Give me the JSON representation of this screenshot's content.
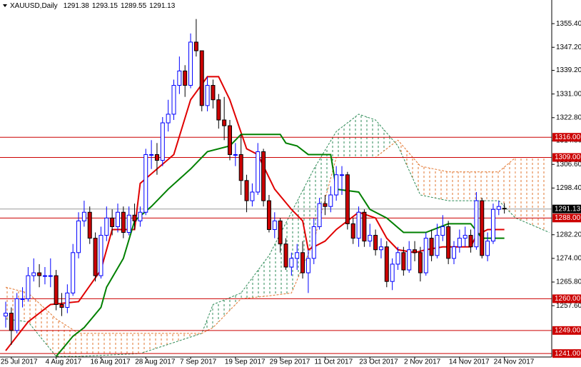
{
  "chart_data": {
    "type": "candlestick",
    "title": "XAUUSD,Daily",
    "categories": [
      null,
      "25 Jul 2017",
      null,
      null,
      null,
      null,
      null,
      null,
      null,
      "4 Aug 2017",
      null,
      null,
      null,
      null,
      null,
      null,
      null,
      "16 Aug 2017",
      null,
      null,
      null,
      null,
      null,
      null,
      null,
      "28 Aug 2017",
      null,
      null,
      null,
      null,
      null,
      null,
      null,
      "7 Sep 2017",
      null,
      null,
      null,
      null,
      null,
      null,
      null,
      "19 Sep 2017",
      null,
      null,
      null,
      null,
      null,
      null,
      null,
      "29 Sep 2017",
      null,
      null,
      null,
      null,
      null,
      null,
      null,
      "11 Oct 2017",
      null,
      null,
      null,
      null,
      null,
      null,
      null,
      "23 Oct 2017",
      null,
      null,
      null,
      null,
      null,
      null,
      null,
      "2 Nov 2017",
      null,
      null,
      null,
      null,
      null,
      null,
      null,
      "14 Nov 2017",
      null,
      null,
      null,
      null,
      null,
      null,
      null,
      "24 Nov 2017"
    ],
    "open": [
      1254,
      1255,
      1249,
      1260,
      1260,
      1268,
      1269,
      1268,
      1268,
      1268,
      1258,
      1257,
      1262,
      1276,
      1287,
      1290,
      1281,
      1268,
      1282,
      1288,
      1285,
      1290,
      1283,
      1289,
      1287,
      1290,
      1310,
      1310,
      1308,
      1321,
      1324,
      1334,
      1339,
      1334,
      1349,
      1346,
      1327,
      1334,
      1329,
      1322,
      1320,
      1310,
      1310,
      1301,
      1294,
      1297,
      1311,
      1294,
      1284,
      1287,
      1279,
      1271,
      1274,
      1276,
      1269,
      1274,
      1285,
      1293,
      1292,
      1296,
      1303,
      1303,
      1286,
      1281,
      1290,
      1280,
      1282,
      1277,
      1278,
      1266,
      1272,
      1276,
      1270,
      1277,
      1276,
      1269,
      1281,
      1275,
      1282,
      1285,
      1274,
      1278,
      1281,
      1282,
      1278,
      1294,
      1275,
      1280,
      1291,
      1291.38
    ],
    "high": [
      1259,
      1257,
      1262,
      1264,
      1271,
      1274,
      1272,
      1271,
      1274,
      1270,
      1262,
      1265,
      1279,
      1290,
      1294,
      1292,
      1283,
      1285,
      1292,
      1291,
      1293,
      1292,
      1292,
      1293,
      1292,
      1312,
      1315,
      1314,
      1323,
      1329,
      1336,
      1344,
      1341,
      1352,
      1357,
      1346,
      1337,
      1336,
      1331,
      1330,
      1322,
      1314,
      1317,
      1303,
      1300,
      1314,
      1312,
      1296,
      1290,
      1288,
      1281,
      1276,
      1279,
      1280,
      1277,
      1288,
      1295,
      1296,
      1299,
      1306,
      1306,
      1304,
      1288,
      1292,
      1291,
      1286,
      1284,
      1281,
      1280,
      1274,
      1278,
      1278,
      1280,
      1280,
      1278,
      1283,
      1284,
      1286,
      1289,
      1287,
      1280,
      1284,
      1285,
      1284,
      1297,
      1295,
      1283,
      1293,
      1294,
      1293.15
    ],
    "low": [
      1250,
      1244,
      1248,
      1257,
      1259,
      1266,
      1264,
      1265,
      1264,
      1256,
      1254,
      1255,
      1261,
      1274,
      1285,
      1279,
      1266,
      1267,
      1280,
      1282,
      1283,
      1281,
      1282,
      1284,
      1285,
      1289,
      1305,
      1303,
      1306,
      1318,
      1322,
      1331,
      1330,
      1333,
      1344,
      1325,
      1325,
      1326,
      1319,
      1315,
      1308,
      1306,
      1296,
      1290,
      1292,
      1296,
      1292,
      1283,
      1281,
      1276,
      1270,
      1268,
      1270,
      1267,
      1262,
      1272,
      1284,
      1289,
      1290,
      1294,
      1296,
      1284,
      1279,
      1278,
      1278,
      1278,
      1275,
      1274,
      1264,
      1263,
      1270,
      1268,
      1269,
      1273,
      1266,
      1268,
      1273,
      1274,
      1280,
      1272,
      1272,
      1276,
      1278,
      1276,
      1277,
      1274,
      1273,
      1279,
      1289,
      1289.55
    ],
    "close": [
      1255,
      1249,
      1260,
      1260,
      1268,
      1269,
      1268,
      1268,
      1268,
      1258,
      1257,
      1262,
      1276,
      1287,
      1290,
      1281,
      1268,
      1282,
      1288,
      1285,
      1290,
      1283,
      1289,
      1287,
      1290,
      1310,
      1310,
      1308,
      1321,
      1324,
      1334,
      1339,
      1334,
      1349,
      1346,
      1327,
      1334,
      1329,
      1322,
      1320,
      1310,
      1310,
      1301,
      1294,
      1297,
      1311,
      1294,
      1284,
      1287,
      1279,
      1271,
      1274,
      1276,
      1269,
      1274,
      1285,
      1293,
      1292,
      1296,
      1303,
      1303,
      1286,
      1281,
      1290,
      1280,
      1282,
      1277,
      1278,
      1266,
      1272,
      1276,
      1270,
      1277,
      1276,
      1269,
      1281,
      1275,
      1282,
      1285,
      1274,
      1278,
      1281,
      1282,
      1278,
      1294,
      1275,
      1280,
      1291,
      1292,
      1291.13
    ],
    "up_color": "#0000ff",
    "down_color": "#cc0000",
    "lines": [
      {
        "color": "#e00000",
        "x": [
          0,
          4,
          8,
          13,
          17,
          19,
          23,
          24,
          30,
          33,
          36,
          38,
          40,
          43,
          45,
          48,
          51,
          53,
          54,
          57,
          59,
          63,
          66,
          68,
          70,
          73,
          75,
          78,
          83,
          84,
          86,
          89
        ],
        "values": [
          1242,
          1252,
          1258,
          1259,
          1270,
          1284,
          1284,
          1300,
          1310,
          1329,
          1337,
          1337,
          1329,
          1312,
          1310,
          1298,
          1291,
          1287,
          1277,
          1280,
          1284,
          1290,
          1288,
          1281,
          1277,
          1276,
          1277,
          1278,
          1278,
          1282,
          1284,
          1284
        ]
      },
      {
        "color": "#008000",
        "x": [
          9,
          12,
          14,
          17,
          18,
          21,
          23,
          26,
          29,
          33,
          36,
          40,
          42,
          49,
          50,
          52,
          54,
          58,
          59,
          63,
          65,
          68,
          71,
          75,
          79,
          83,
          85,
          89
        ],
        "values": [
          1240,
          1247,
          1250,
          1257,
          1264,
          1274,
          1287,
          1292,
          1298,
          1305,
          1311,
          1313,
          1317,
          1317,
          1314,
          1313,
          1310,
          1310,
          1298,
          1297,
          1291,
          1288,
          1283,
          1283,
          1286,
          1286,
          1281,
          1281
        ]
      }
    ],
    "cloud": {
      "up_color": "#2e8b57",
      "down_color": "#e2762f",
      "x": [
        0,
        4,
        9,
        13,
        24,
        35,
        37,
        42,
        47,
        51,
        55,
        59,
        63,
        66,
        70,
        74,
        79,
        88,
        91,
        97
      ],
      "span_a": [
        1253,
        1252,
        1240,
        1240,
        1241,
        1248,
        1258,
        1262,
        1275,
        1290,
        1305,
        1318,
        1324,
        1322,
        1313,
        1296,
        1294,
        1294,
        1288,
        1283
      ],
      "span_b": [
        1264,
        1262,
        1253,
        1248,
        1248,
        1248,
        1250,
        1260,
        1261,
        1262,
        1280,
        1309,
        1309,
        1309,
        1315,
        1306,
        1304,
        1304,
        1309,
        1309
      ]
    },
    "levels": [
      {
        "value": 1316,
        "label": "1316.00"
      },
      {
        "value": 1309,
        "label": "1309.00"
      },
      {
        "value": 1288,
        "label": "1288.00"
      },
      {
        "value": 1260,
        "label": "1260.00"
      },
      {
        "value": 1249,
        "label": "1249.00"
      },
      {
        "value": 1241,
        "label": "1241.00"
      }
    ],
    "level_color": "#cc0000",
    "last_price_color": "#000000",
    "ylim": [
      1239.8,
      1363.6
    ],
    "yticks": [
      {
        "value": 1355.4,
        "label": "1355.40"
      },
      {
        "value": 1347.2,
        "label": "1347.20"
      },
      {
        "value": 1339.2,
        "label": "1339.20"
      },
      {
        "value": 1331,
        "label": "1331.00"
      },
      {
        "value": 1322.8,
        "label": "1322.80"
      },
      {
        "value": 1314.8,
        "label": "1314.80"
      },
      {
        "value": 1306.6,
        "label": "1306.60"
      },
      {
        "value": 1298.4,
        "label": "1298.40"
      },
      {
        "value": 1282.2,
        "label": "1282.20"
      },
      {
        "value": 1274,
        "label": "1274.00"
      },
      {
        "value": 1265.8,
        "label": "1265.80"
      },
      {
        "value": 1257.6,
        "label": "1257.60"
      }
    ]
  }
}
